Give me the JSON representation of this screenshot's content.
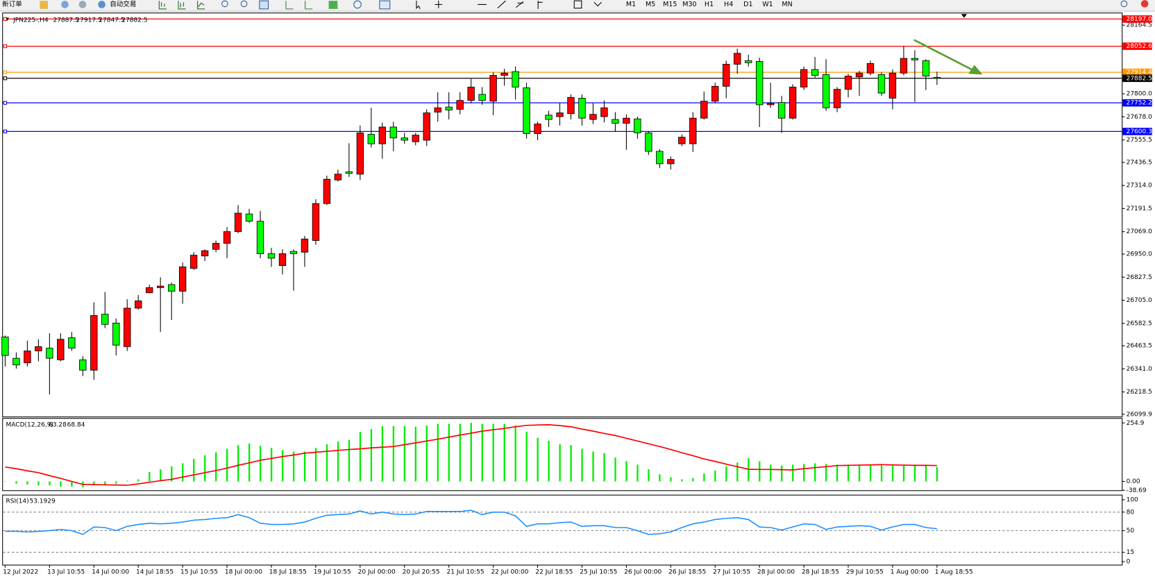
{
  "toolbar": {
    "new_order": "新订单",
    "auto_trading": "自动交易",
    "timeframes": [
      "M1",
      "M5",
      "M15",
      "M30",
      "H1",
      "H4",
      "D1",
      "W1",
      "MN"
    ]
  },
  "chart_data": [
    {
      "type": "candlestick",
      "symbol": "JPN225-,H4",
      "categories": [
        "12 Jul 2022",
        null,
        null,
        null,
        "13 Jul 10:55",
        null,
        null,
        null,
        "14 Jul 00:00",
        null,
        null,
        null,
        "14 Jul 18:55",
        null,
        null,
        null,
        "15 Jul 10:55",
        null,
        null,
        null,
        "18 Jul 00:00",
        null,
        null,
        null,
        "18 Jul 18:55",
        null,
        null,
        null,
        "19 Jul 10:55",
        null,
        null,
        null,
        "20 Jul 00:00",
        null,
        null,
        null,
        "20 Jul 20:55",
        null,
        null,
        null,
        "21 Jul 10:55",
        null,
        null,
        null,
        "22 Jul 00:00",
        null,
        null,
        null,
        "22 Jul 18:55",
        null,
        null,
        null,
        "25 Jul 10:55",
        null,
        null,
        null,
        "26 Jul 00:00",
        null,
        null,
        null,
        "26 Jul 18:55",
        null,
        null,
        null,
        "27 Jul 10:55",
        null,
        null,
        null,
        "28 Jul 00:00",
        null,
        null,
        null,
        "28 Jul 18:55",
        null,
        null,
        null,
        "29 Jul 10:55",
        null,
        null,
        null,
        "1 Aug 00:00",
        null,
        null,
        null,
        "1 Aug 18:55"
      ],
      "open": [
        26510,
        26397,
        26373,
        26436,
        26451,
        26389,
        26506,
        26389,
        26334,
        26631,
        26584,
        26459,
        26663,
        26745,
        26772,
        26788,
        26753,
        26874,
        26940,
        26975,
        27007,
        27069,
        27163,
        27124,
        26952,
        26889,
        26964,
        26960,
        27022,
        27218,
        27343,
        27386,
        27374,
        27585,
        27535,
        27624,
        27566,
        27546,
        27554,
        27703,
        27730,
        27718,
        27765,
        27797,
        27761,
        27898,
        27918,
        27832,
        27589,
        27687,
        27679,
        27695,
        27777,
        27664,
        27679,
        27664,
        27644,
        27667,
        27593,
        27495,
        27429,
        27535,
        27535,
        27671,
        27761,
        27840,
        27957,
        27976,
        27972,
        27742,
        27754,
        27671,
        27836,
        27929,
        27902,
        27726,
        27824,
        27890,
        27910,
        27902,
        27777,
        27910,
        27988,
        27976,
        27887.5
      ],
      "high": [
        26518,
        26428,
        26491,
        26498,
        26530,
        26530,
        26537,
        26408,
        26694,
        26749,
        26608,
        26710,
        26733,
        26788,
        26827,
        26799,
        26905,
        26960,
        26975,
        27022,
        27093,
        27210,
        27190,
        27179,
        26983,
        26975,
        26975,
        27046,
        27241,
        27366,
        27398,
        27538,
        27632,
        27726,
        27648,
        27652,
        27593,
        27593,
        27718,
        27808,
        27808,
        27808,
        27879,
        27836,
        27914,
        27933,
        27945,
        27859,
        27652,
        27710,
        27750,
        27797,
        27797,
        27750,
        27765,
        27703,
        27691,
        27679,
        27601,
        27507,
        27468,
        27585,
        27703,
        27812,
        27859,
        27976,
        28039,
        28008,
        27992,
        27859,
        27789,
        27851,
        27945,
        27996,
        27984,
        27836,
        27906,
        27922,
        27976,
        27914,
        27929,
        28055,
        28031,
        27984,
        27917.5
      ],
      "low": [
        26354,
        26342,
        26354,
        26381,
        26205,
        26381,
        26436,
        26303,
        26283,
        26557,
        26412,
        26436,
        26655,
        26741,
        26537,
        26600,
        26686,
        26866,
        26913,
        26960,
        26928,
        27061,
        27116,
        26928,
        26882,
        26842,
        26756,
        26882,
        26999,
        27210,
        27335,
        27359,
        27343,
        27515,
        27456,
        27495,
        27535,
        27527,
        27523,
        27652,
        27664,
        27691,
        27750,
        27742,
        27687,
        27843,
        27769,
        27562,
        27554,
        27624,
        27632,
        27664,
        27632,
        27640,
        27648,
        27601,
        27503,
        27562,
        27476,
        27406,
        27398,
        27523,
        27492,
        27664,
        27750,
        27777,
        27906,
        27945,
        27624,
        27726,
        27593,
        27664,
        27820,
        27886,
        27710,
        27703,
        27781,
        27789,
        27898,
        27789,
        27718,
        27898,
        27757,
        27820,
        27847.5
      ],
      "close": [
        26412,
        26362,
        26436,
        26459,
        26397,
        26498,
        26451,
        26334,
        26624,
        26577,
        26467,
        26663,
        26702,
        26772,
        26780,
        26753,
        26882,
        26944,
        26968,
        27007,
        27069,
        27167,
        27124,
        26952,
        26928,
        26952,
        26952,
        27030,
        27218,
        27347,
        27374,
        27378,
        27593,
        27535,
        27624,
        27566,
        27554,
        27581,
        27699,
        27726,
        27714,
        27765,
        27836,
        27765,
        27898,
        27910,
        27836,
        27589,
        27640,
        27664,
        27699,
        27781,
        27671,
        27691,
        27726,
        27644,
        27671,
        27593,
        27495,
        27429,
        27452,
        27570,
        27671,
        27761,
        27840,
        27957,
        28015,
        27965,
        27742,
        27750,
        27671,
        27836,
        27929,
        27898,
        27726,
        27824,
        27894,
        27910,
        27961,
        27804,
        27910,
        27988,
        27980,
        27894,
        27882.5
      ],
      "up_color": "#ff0000",
      "down_color": "#00ff00",
      "ylim": [
        26088,
        28227
      ],
      "yticks": [
        28164.5,
        {
          "value": 27800,
          "label": "27800.0"
        },
        {
          "value": 27678,
          "label": "27678.0"
        },
        27555.5,
        27436.5,
        {
          "value": 27314,
          "label": "27314.0"
        },
        27191.5,
        {
          "value": 27069,
          "label": "27069.0"
        },
        {
          "value": 26950,
          "label": "26950.0"
        },
        26827.5,
        {
          "value": 26705,
          "label": "26705.0"
        },
        26582.5,
        26463.5,
        {
          "value": 26341,
          "label": "26341.0"
        },
        26218.5,
        26099.9
      ],
      "hlines": [
        {
          "value": 28197,
          "label": "28197.0",
          "color": "#ff0000"
        },
        {
          "value": 28052.6,
          "label": "28052.6",
          "color": "#ff0000"
        },
        {
          "value": 27914.4,
          "label": "27914.4",
          "color": "#ff9900"
        },
        {
          "value": 27882.5,
          "label": "27882.5",
          "color": "#000000"
        },
        {
          "value": 27752.2,
          "label": "27752.2",
          "color": "#0000ff"
        },
        {
          "value": 27600.3,
          "label": "27600.3",
          "color": "#0000ff"
        }
      ]
    },
    {
      "type": "macd",
      "title": "MACD(12,26,9)",
      "series": [
        {
          "style": "histogram",
          "color": "#00ee00",
          "values": [
            -1,
            -10,
            -13,
            -17,
            -17,
            -23,
            -23,
            -26,
            -17,
            -17,
            -10,
            3,
            9,
            41,
            53,
            66,
            79,
            98,
            114,
            127,
            142,
            158,
            165,
            155,
            146,
            136,
            130,
            130,
            146,
            162,
            174,
            181,
            216,
            228,
            241,
            241,
            241,
            238,
            244,
            251,
            251,
            251,
            254.9,
            251,
            251,
            251,
            244,
            216,
            190,
            177,
            162,
            158,
            142,
            130,
            123,
            104,
            88,
            73,
            53,
            31,
            18,
            9,
            15,
            34,
            47,
            66,
            82,
            101,
            88,
            73,
            69,
            73,
            76,
            79,
            76,
            73,
            73,
            73,
            73,
            73,
            69,
            73,
            73,
            69,
            63.28
          ]
        },
        {
          "style": "line",
          "color": "#ff0000",
          "values": [
            63,
            55,
            46,
            38,
            25,
            13,
            0,
            -13,
            -14,
            -15,
            -16,
            -17,
            -11,
            -4,
            3,
            9,
            19,
            28,
            38,
            47,
            58,
            70,
            81,
            92,
            100,
            108,
            115,
            123,
            127,
            131,
            135,
            139,
            142,
            146,
            149,
            152,
            160,
            168,
            176,
            184,
            193,
            202,
            210,
            219,
            225,
            231,
            238,
            244,
            246,
            247,
            243,
            238,
            228,
            219,
            209,
            200,
            188,
            176,
            164,
            152,
            139,
            125,
            112,
            98,
            87,
            75,
            64,
            53,
            52,
            52,
            51,
            50,
            55,
            60,
            64,
            69,
            70,
            71,
            72,
            73,
            72,
            71,
            70,
            70,
            68.84
          ]
        }
      ],
      "ylim": [
        -38.69,
        273
      ],
      "yticks": [
        254.9,
        {
          "value": 0,
          "label": "0.00"
        },
        -38.69
      ]
    },
    {
      "type": "rsi",
      "title": "RSI(14)",
      "series": [
        {
          "style": "line",
          "color": "#1e90ff",
          "values": [
            49,
            49,
            48,
            49,
            50,
            52,
            50,
            44,
            56,
            55,
            50,
            57,
            60,
            62,
            61,
            62,
            64,
            67,
            68,
            70,
            71,
            76,
            71,
            62,
            60,
            60,
            61,
            64,
            70,
            75,
            76,
            77,
            82,
            77,
            80,
            77,
            76,
            77,
            81,
            81,
            81,
            81,
            83,
            76,
            80,
            80,
            74,
            57,
            61,
            61,
            63,
            64,
            57,
            58,
            58,
            55,
            55,
            50,
            44,
            45,
            48,
            55,
            61,
            64,
            68,
            70,
            71,
            68,
            56,
            55,
            51,
            56,
            61,
            60,
            52,
            56,
            57,
            58,
            57,
            51,
            56,
            60,
            60,
            55,
            53.1929
          ]
        }
      ],
      "ylim": [
        -5,
        107
      ],
      "yticks": [
        100,
        80,
        50,
        15,
        0
      ],
      "levels": [
        80,
        50,
        15
      ]
    }
  ]
}
